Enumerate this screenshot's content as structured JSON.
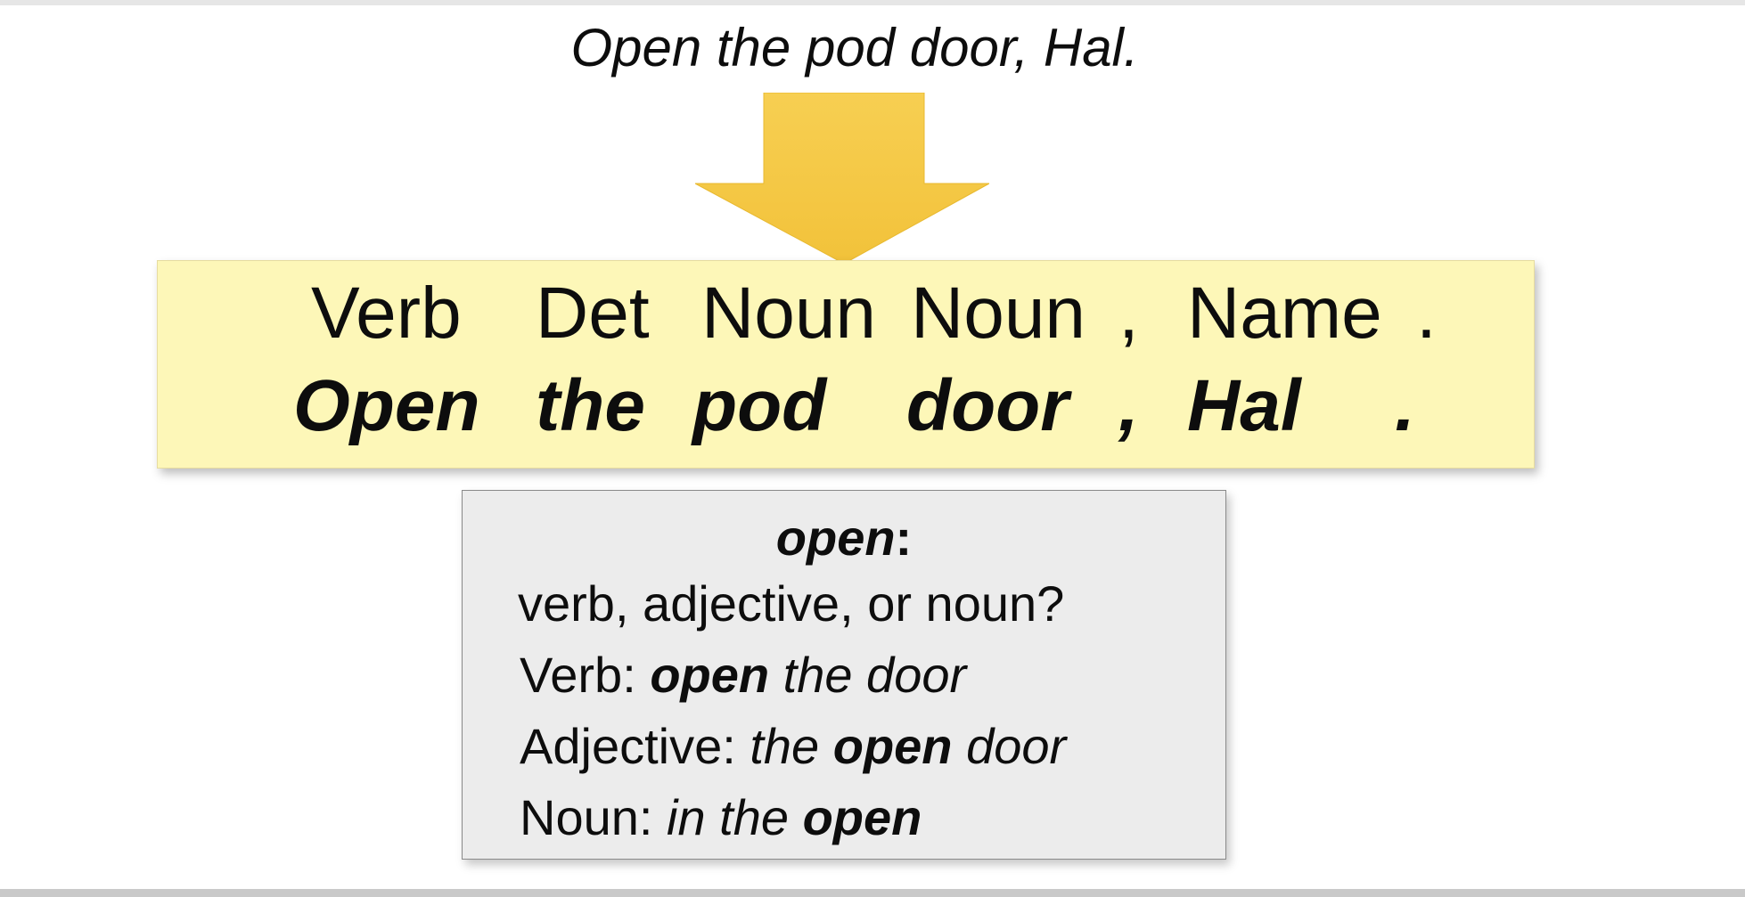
{
  "sentence": "Open the pod door, Hal.",
  "colors": {
    "arrow": "#f5c842",
    "tag_box_bg": "#fdf7b8",
    "info_box_bg": "#ececec"
  },
  "tagging": {
    "tags": [
      "Verb",
      "Det",
      "Noun",
      "Noun",
      ",",
      "Name",
      "."
    ],
    "words": [
      "Open",
      "the",
      "pod",
      "door",
      ",",
      "Hal",
      "."
    ]
  },
  "ambiguity": {
    "word": "open",
    "colon": ":",
    "question": "verb, adjective, or noun?",
    "examples": [
      {
        "label": "Verb: ",
        "pre": "",
        "kw": "open",
        "post": " the door"
      },
      {
        "label": "Adjective: ",
        "pre": "the ",
        "kw": "open",
        "post": " door"
      },
      {
        "label": "Noun: ",
        "pre": "in the ",
        "kw": "open",
        "post": ""
      }
    ]
  }
}
